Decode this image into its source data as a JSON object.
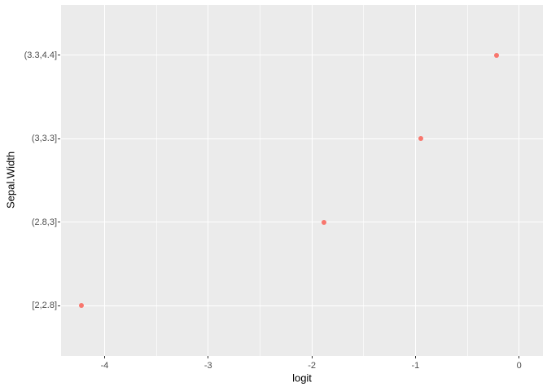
{
  "chart_data": {
    "type": "scatter",
    "title": "",
    "xlabel": "logit",
    "ylabel": "Sepal.Width",
    "categories": [
      "[2,2.8]",
      "(2.8,3]",
      "(3,3.3]",
      "(3.3,4.4]"
    ],
    "points": [
      {
        "category": "[2,2.8]",
        "x": -4.22
      },
      {
        "category": "(2.8,3]",
        "x": -1.88
      },
      {
        "category": "(3,3.3]",
        "x": -0.95
      },
      {
        "category": "(3.3,4.4]",
        "x": -0.22
      }
    ],
    "x_major_ticks": [
      -4,
      -3,
      -2,
      -1,
      0
    ],
    "x_minor_ticks": [
      -3.5,
      -2.5,
      -1.5,
      -0.5
    ],
    "xlim": [
      -4.42,
      0.23
    ],
    "y_units_lim": [
      0.4,
      4.6
    ],
    "grid": true,
    "legend": "none",
    "style": {
      "point_color": "#F8766D",
      "panel_bg": "#EBEBEB",
      "grid_major_color": "#FFFFFF",
      "grid_minor_color": "rgba(255,255,255,0.65)",
      "tick_mark_color": "#333333",
      "axis_text_color": "#4D4D4D",
      "axis_title_color": "#000000",
      "figure_bg": "#FFFFFF"
    }
  }
}
